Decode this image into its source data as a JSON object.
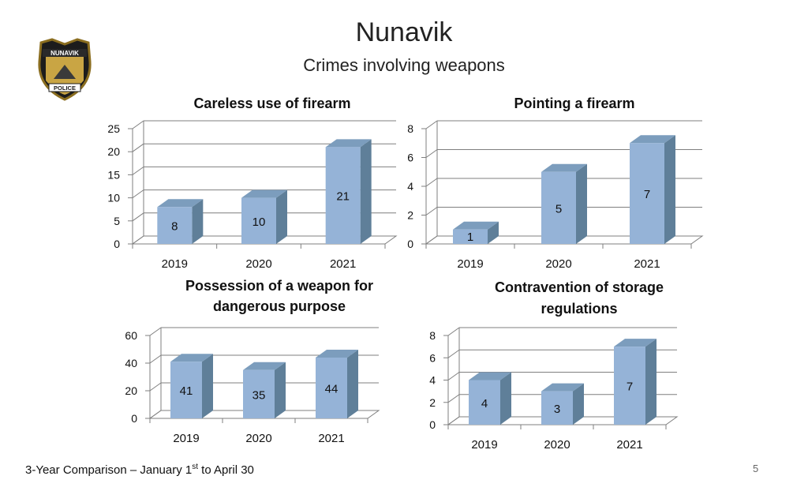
{
  "slide": {
    "title": "Nunavik",
    "subtitle": "Crimes involving weapons",
    "logo_text_top": "NUNAVIK",
    "logo_text_bottom": "POLICE",
    "footer_prefix": "3-Year Comparison – January 1",
    "footer_sup": "st",
    "footer_suffix": " to April 30",
    "page_number": "5"
  },
  "colors": {
    "bar_front": "#95b3d7",
    "bar_side": "#5f7f99",
    "bar_top": "#7c9dbd",
    "grid": "#7f7f7f"
  },
  "chart_data": [
    {
      "type": "bar",
      "title": [
        "Careless use of firearm"
      ],
      "categories": [
        "2019",
        "2020",
        "2021"
      ],
      "values": [
        8,
        10,
        21
      ],
      "ylim": [
        0,
        25
      ],
      "yticks": [
        0,
        5,
        10,
        15,
        20,
        25
      ],
      "grid": true
    },
    {
      "type": "bar",
      "title": [
        "Pointing a firearm"
      ],
      "categories": [
        "2019",
        "2020",
        "2021"
      ],
      "values": [
        1,
        5,
        7
      ],
      "ylim": [
        0,
        8
      ],
      "yticks": [
        0,
        2,
        4,
        6,
        8
      ],
      "grid": true
    },
    {
      "type": "bar",
      "title": [
        "Possession of a weapon for",
        "dangerous purpose"
      ],
      "categories": [
        "2019",
        "2020",
        "2021"
      ],
      "values": [
        41,
        35,
        44
      ],
      "ylim": [
        0,
        60
      ],
      "yticks": [
        0,
        20,
        40,
        60
      ],
      "grid": true
    },
    {
      "type": "bar",
      "title": [
        "Contravention of storage",
        "regulations"
      ],
      "categories": [
        "2019",
        "2020",
        "2021"
      ],
      "values": [
        4,
        3,
        7
      ],
      "ylim": [
        0,
        8
      ],
      "yticks": [
        0,
        2,
        4,
        6,
        8
      ],
      "grid": true
    }
  ]
}
